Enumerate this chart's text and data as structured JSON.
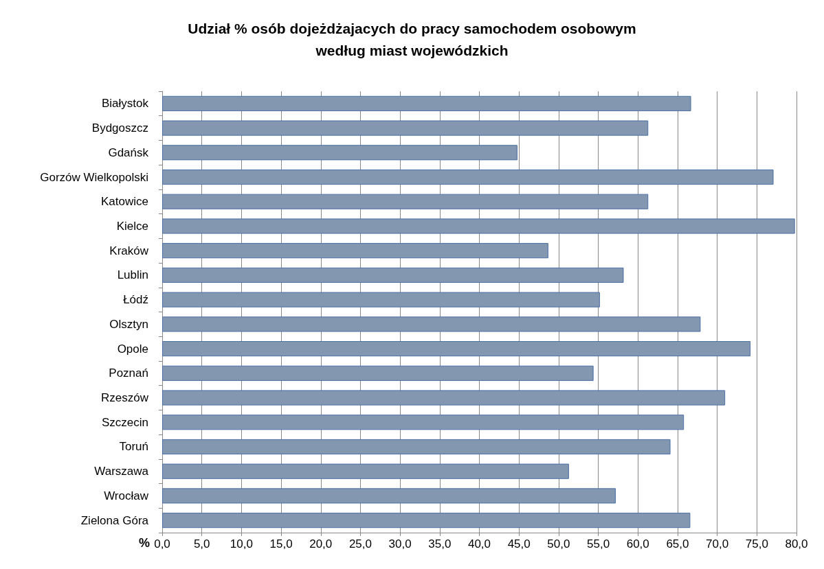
{
  "chart_data": {
    "type": "bar",
    "orientation": "horizontal",
    "title": "Udział % osób dojeżdżajacych do pracy samochodem osobowym\nwedług miast wojewódzkich",
    "xlabel": "%",
    "categories": [
      "Białystok",
      "Bydgoszcz",
      "Gdańsk",
      "Gorzów Wielkopolski",
      "Katowice",
      "Kielce",
      "Kraków",
      "Lublin",
      "Łódź",
      "Olsztyn",
      "Opole",
      "Poznań",
      "Rzeszów",
      "Szczecin",
      "Toruń",
      "Warszawa",
      "Wrocław",
      "Zielona Góra"
    ],
    "values": [
      66.7,
      61.3,
      44.8,
      77.1,
      61.3,
      79.8,
      48.7,
      58.2,
      55.2,
      67.9,
      74.2,
      54.4,
      71.0,
      65.8,
      64.1,
      51.3,
      57.2,
      66.6
    ],
    "color": "#8497b0",
    "xlim": [
      0,
      80
    ],
    "xticks": [
      {
        "value": 0,
        "label": "0,0"
      },
      {
        "value": 5,
        "label": "5,0"
      },
      {
        "value": 10,
        "label": "10,0"
      },
      {
        "value": 15,
        "label": "15,0"
      },
      {
        "value": 20,
        "label": "20,0"
      },
      {
        "value": 25,
        "label": "25,0"
      },
      {
        "value": 30,
        "label": "30,0"
      },
      {
        "value": 35,
        "label": "35,0"
      },
      {
        "value": 40,
        "label": "40,0"
      },
      {
        "value": 45,
        "label": "45,0"
      },
      {
        "value": 50,
        "label": "50,0"
      },
      {
        "value": 55,
        "label": "55,0"
      },
      {
        "value": 60,
        "label": "60,0"
      },
      {
        "value": 65,
        "label": "65,0"
      },
      {
        "value": 70,
        "label": "70,0"
      },
      {
        "value": 75,
        "label": "75,0"
      },
      {
        "value": 80,
        "label": "80,0"
      }
    ],
    "grid": "x"
  }
}
